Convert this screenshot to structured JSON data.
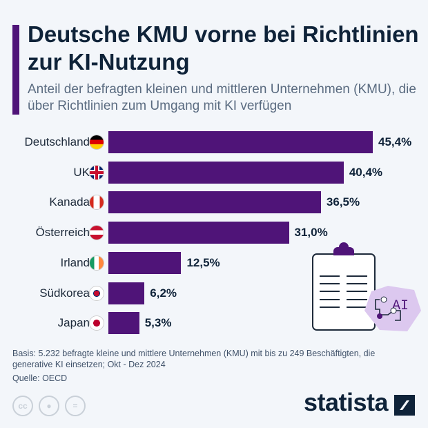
{
  "header": {
    "title": "Deutsche KMU vorne bei Richtlinien zur KI-Nutzung",
    "subtitle": "Anteil der befragten kleinen und mittleren Unternehmen (KMU), die über Richtlinien zum Umgang mit KI verfügen"
  },
  "chart_data": {
    "type": "bar",
    "orientation": "horizontal",
    "categories": [
      "Deutschland",
      "UK",
      "Kanada",
      "Österreich",
      "Irland",
      "Südkorea",
      "Japan"
    ],
    "values": [
      45.4,
      40.4,
      36.5,
      31.0,
      12.5,
      6.2,
      5.3
    ],
    "labels": [
      "45,4%",
      "40,4%",
      "36,5%",
      "31,0%",
      "12,5%",
      "6,2%",
      "5,3%"
    ],
    "unit": "%",
    "bar_color": "#4f1478",
    "xlim": [
      0,
      45.4
    ],
    "grid": false
  },
  "flags": [
    "germany-flag-icon",
    "uk-flag-icon",
    "canada-flag-icon",
    "austria-flag-icon",
    "ireland-flag-icon",
    "south-korea-flag-icon",
    "japan-flag-icon"
  ],
  "footer": {
    "basis": "Basis: 5.232 befragte kleine und mittlere Unternehmen (KMU) mit bis zu 249 Beschäftigten, die generative KI einsetzen; Okt - Dez 2024",
    "source": "Quelle: OECD",
    "logo": "statista",
    "cc": "cc",
    "nd": "="
  },
  "illustration": {
    "ai_label": "AI"
  }
}
